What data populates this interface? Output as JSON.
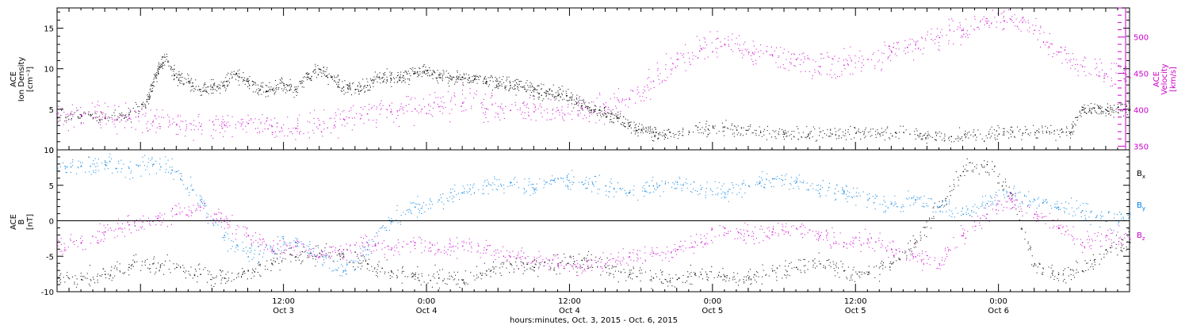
{
  "figure": {
    "xlabel": "hours:minutes, Oct.  3, 2015 - Oct.  6, 2015",
    "colors": {
      "axis": "#000000",
      "magenta": "#cc00cc",
      "blue": "#0080e0"
    }
  },
  "chart_data": [
    {
      "type": "scatter",
      "title": "",
      "ylabel_left": [
        "ACE",
        "Ion Density",
        "[cm⁻³]"
      ],
      "ylabel_right": [
        "ACE",
        "Velocity",
        "[km/s]"
      ],
      "xlim_hours": [
        -7,
        83
      ],
      "ylim": [
        0,
        17.5
      ],
      "ylim_right": [
        345,
        540
      ],
      "yticks": [
        0,
        5,
        10,
        15
      ],
      "yticks_right": [
        350,
        400,
        450,
        500
      ],
      "grid": false,
      "series": [
        {
          "name": "",
          "axis": "left",
          "color": "#000000",
          "points": [
            [
              -7,
              4.0
            ],
            [
              -5,
              4.2
            ],
            [
              -3,
              4.0
            ],
            [
              -1,
              4.4
            ],
            [
              0.5,
              6
            ],
            [
              1,
              8
            ],
            [
              1.5,
              10
            ],
            [
              2,
              11.5
            ],
            [
              3,
              9
            ],
            [
              4,
              8.5
            ],
            [
              5,
              7.5
            ],
            [
              6,
              7.8
            ],
            [
              7,
              8
            ],
            [
              8,
              9.5
            ],
            [
              9,
              8.5
            ],
            [
              10,
              7.5
            ],
            [
              11,
              7.5
            ],
            [
              12,
              8
            ],
            [
              13,
              7.5
            ],
            [
              14,
              9
            ],
            [
              15,
              10
            ],
            [
              16,
              9
            ],
            [
              17,
              7.8
            ],
            [
              18,
              7.5
            ],
            [
              19,
              8
            ],
            [
              20,
              9
            ],
            [
              21,
              8.8
            ],
            [
              22,
              9.2
            ],
            [
              23,
              9.5
            ],
            [
              24,
              9.8
            ],
            [
              25,
              9.3
            ],
            [
              26,
              8.8
            ],
            [
              27,
              9
            ],
            [
              28,
              8.8
            ],
            [
              29,
              8.5
            ],
            [
              30,
              8.2
            ],
            [
              31,
              8
            ],
            [
              32,
              7.8
            ],
            [
              33,
              7.5
            ],
            [
              34,
              7
            ],
            [
              35,
              6.8
            ],
            [
              36,
              6.5
            ],
            [
              37,
              5.5
            ],
            [
              38,
              5
            ],
            [
              39,
              4.5
            ],
            [
              40,
              4
            ],
            [
              41,
              3
            ],
            [
              42,
              2.5
            ],
            [
              43,
              2.2
            ],
            [
              44,
              2
            ],
            [
              46,
              2.2
            ],
            [
              48,
              2.8
            ],
            [
              50,
              2.5
            ],
            [
              52,
              2.2
            ],
            [
              54,
              2
            ],
            [
              56,
              1.9
            ],
            [
              58,
              2
            ],
            [
              60,
              2.1
            ],
            [
              62,
              2.0
            ],
            [
              64,
              2.2
            ],
            [
              66,
              1.8
            ],
            [
              68,
              1.7
            ],
            [
              70,
              1.9
            ],
            [
              72,
              2.0
            ],
            [
              74,
              2.1
            ],
            [
              76,
              2.2
            ],
            [
              78,
              2.2
            ],
            [
              79,
              5
            ],
            [
              80,
              5.2
            ],
            [
              81,
              5.0
            ],
            [
              82,
              5.3
            ],
            [
              83,
              5.0
            ]
          ]
        },
        {
          "name": "",
          "axis": "right",
          "color": "#cc00cc",
          "points": [
            [
              -7,
              395
            ],
            [
              -5,
              393
            ],
            [
              -3,
              392
            ],
            [
              -1,
              389
            ],
            [
              1,
              384
            ],
            [
              3,
              380
            ],
            [
              5,
              378
            ],
            [
              7,
              380
            ],
            [
              9,
              382
            ],
            [
              11,
              378
            ],
            [
              13,
              375
            ],
            [
              15,
              380
            ],
            [
              17,
              388
            ],
            [
              19,
              395
            ],
            [
              21,
              398
            ],
            [
              23,
              402
            ],
            [
              25,
              405
            ],
            [
              27,
              410
            ],
            [
              29,
              402
            ],
            [
              31,
              400
            ],
            [
              33,
              398
            ],
            [
              35,
              400
            ],
            [
              37,
              402
            ],
            [
              39,
              405
            ],
            [
              41,
              415
            ],
            [
              43,
              440
            ],
            [
              45,
              470
            ],
            [
              47,
              485
            ],
            [
              49,
              490
            ],
            [
              51,
              480
            ],
            [
              53,
              475
            ],
            [
              55,
              470
            ],
            [
              57,
              460
            ],
            [
              59,
              462
            ],
            [
              61,
              470
            ],
            [
              63,
              480
            ],
            [
              65,
              490
            ],
            [
              67,
              500
            ],
            [
              69,
              510
            ],
            [
              71,
              520
            ],
            [
              73,
              525
            ],
            [
              75,
              510
            ],
            [
              77,
              480
            ],
            [
              79,
              460
            ],
            [
              81,
              450
            ],
            [
              83,
              445
            ]
          ]
        }
      ]
    },
    {
      "type": "scatter",
      "title": "",
      "ylabel_left": [
        "ACE",
        "B",
        "[nT]"
      ],
      "xlim_hours": [
        -7,
        83
      ],
      "ylim": [
        -10,
        10
      ],
      "yticks": [
        -10,
        -5,
        0,
        5,
        10
      ],
      "xticks": [
        {
          "hour": 12,
          "label": "12:00",
          "sublabel": "Oct 3"
        },
        {
          "hour": 24,
          "label": "0:00",
          "sublabel": "Oct 4"
        },
        {
          "hour": 36,
          "label": "12:00",
          "sublabel": "Oct 4"
        },
        {
          "hour": 48,
          "label": "0:00",
          "sublabel": "Oct 5"
        },
        {
          "hour": 60,
          "label": "12:00",
          "sublabel": "Oct 5"
        },
        {
          "hour": 72,
          "label": "0:00",
          "sublabel": "Oct 6"
        }
      ],
      "zero_line": true,
      "grid": false,
      "legend_placement": "right",
      "series": [
        {
          "name_main": "B",
          "name_sub": "x",
          "color": "#000000",
          "points": [
            [
              -7,
              -8
            ],
            [
              -5,
              -8.2
            ],
            [
              -3,
              -7.5
            ],
            [
              -1,
              -6.5
            ],
            [
              1,
              -6
            ],
            [
              3,
              -6.5
            ],
            [
              5,
              -7.5
            ],
            [
              7,
              -8
            ],
            [
              9,
              -7
            ],
            [
              11,
              -6
            ],
            [
              13,
              -5
            ],
            [
              15,
              -4.5
            ],
            [
              17,
              -5
            ],
            [
              19,
              -6
            ],
            [
              21,
              -7
            ],
            [
              23,
              -7.5
            ],
            [
              25,
              -8
            ],
            [
              27,
              -8.3
            ],
            [
              29,
              -7
            ],
            [
              31,
              -6
            ],
            [
              33,
              -6.5
            ],
            [
              35,
              -6
            ],
            [
              37,
              -5.5
            ],
            [
              39,
              -6.5
            ],
            [
              41,
              -7.5
            ],
            [
              43,
              -8
            ],
            [
              45,
              -8.2
            ],
            [
              47,
              -7.5
            ],
            [
              49,
              -7.8
            ],
            [
              51,
              -8
            ],
            [
              53,
              -7
            ],
            [
              55,
              -6.5
            ],
            [
              57,
              -6
            ],
            [
              59,
              -7
            ],
            [
              61,
              -7.5
            ],
            [
              63,
              -6
            ],
            [
              65,
              -3
            ],
            [
              67,
              2
            ],
            [
              69,
              7
            ],
            [
              71,
              8
            ],
            [
              73,
              4
            ],
            [
              75,
              -6
            ],
            [
              77,
              -7.5
            ],
            [
              79,
              -7
            ],
            [
              81,
              -4
            ],
            [
              83,
              -3
            ]
          ]
        },
        {
          "name_main": "B",
          "name_sub": "y",
          "color": "#0080e0",
          "points": [
            [
              -7,
              7.5
            ],
            [
              -5,
              7.8
            ],
            [
              -3,
              8
            ],
            [
              -1,
              7.5
            ],
            [
              1,
              8
            ],
            [
              3,
              7
            ],
            [
              5,
              3
            ],
            [
              7,
              -2
            ],
            [
              9,
              -5
            ],
            [
              11,
              -4
            ],
            [
              13,
              -3
            ],
            [
              15,
              -5
            ],
            [
              17,
              -7
            ],
            [
              19,
              -4
            ],
            [
              21,
              0
            ],
            [
              23,
              2
            ],
            [
              25,
              3
            ],
            [
              27,
              4
            ],
            [
              29,
              5
            ],
            [
              31,
              5.5
            ],
            [
              33,
              4.5
            ],
            [
              35,
              6
            ],
            [
              37,
              5.5
            ],
            [
              39,
              5
            ],
            [
              41,
              4
            ],
            [
              43,
              5
            ],
            [
              45,
              5.5
            ],
            [
              47,
              4.5
            ],
            [
              49,
              4
            ],
            [
              51,
              5
            ],
            [
              53,
              6
            ],
            [
              55,
              5.5
            ],
            [
              57,
              4.5
            ],
            [
              59,
              4
            ],
            [
              61,
              3
            ],
            [
              63,
              2.5
            ],
            [
              65,
              3
            ],
            [
              67,
              2
            ],
            [
              69,
              1
            ],
            [
              71,
              2.5
            ],
            [
              73,
              4
            ],
            [
              75,
              3
            ],
            [
              77,
              2
            ],
            [
              79,
              1.5
            ],
            [
              81,
              0
            ],
            [
              83,
              1
            ]
          ]
        },
        {
          "name_main": "B",
          "name_sub": "z",
          "color": "#cc00cc",
          "points": [
            [
              -7,
              -3.5
            ],
            [
              -5,
              -3
            ],
            [
              -3,
              -1.5
            ],
            [
              -1,
              -0.5
            ],
            [
              1,
              0
            ],
            [
              3,
              1
            ],
            [
              5,
              2
            ],
            [
              7,
              0
            ],
            [
              9,
              -2
            ],
            [
              11,
              -4
            ],
            [
              13,
              -3.5
            ],
            [
              15,
              -5
            ],
            [
              17,
              -4
            ],
            [
              19,
              -3
            ],
            [
              21,
              -4
            ],
            [
              23,
              -3
            ],
            [
              25,
              -4
            ],
            [
              27,
              -3.5
            ],
            [
              29,
              -4
            ],
            [
              31,
              -5
            ],
            [
              33,
              -5.5
            ],
            [
              35,
              -6
            ],
            [
              37,
              -6.5
            ],
            [
              39,
              -6
            ],
            [
              41,
              -5
            ],
            [
              43,
              -4.5
            ],
            [
              45,
              -4
            ],
            [
              47,
              -3
            ],
            [
              49,
              -1
            ],
            [
              51,
              -2
            ],
            [
              53,
              -1.5
            ],
            [
              55,
              -1
            ],
            [
              57,
              -2
            ],
            [
              59,
              -3
            ],
            [
              61,
              -2.5
            ],
            [
              63,
              -4
            ],
            [
              65,
              -5
            ],
            [
              67,
              -6
            ],
            [
              69,
              -2
            ],
            [
              71,
              1
            ],
            [
              73,
              3
            ],
            [
              75,
              1
            ],
            [
              77,
              -1
            ],
            [
              79,
              -3
            ],
            [
              81,
              -2
            ],
            [
              83,
              -2.5
            ]
          ]
        }
      ]
    }
  ]
}
